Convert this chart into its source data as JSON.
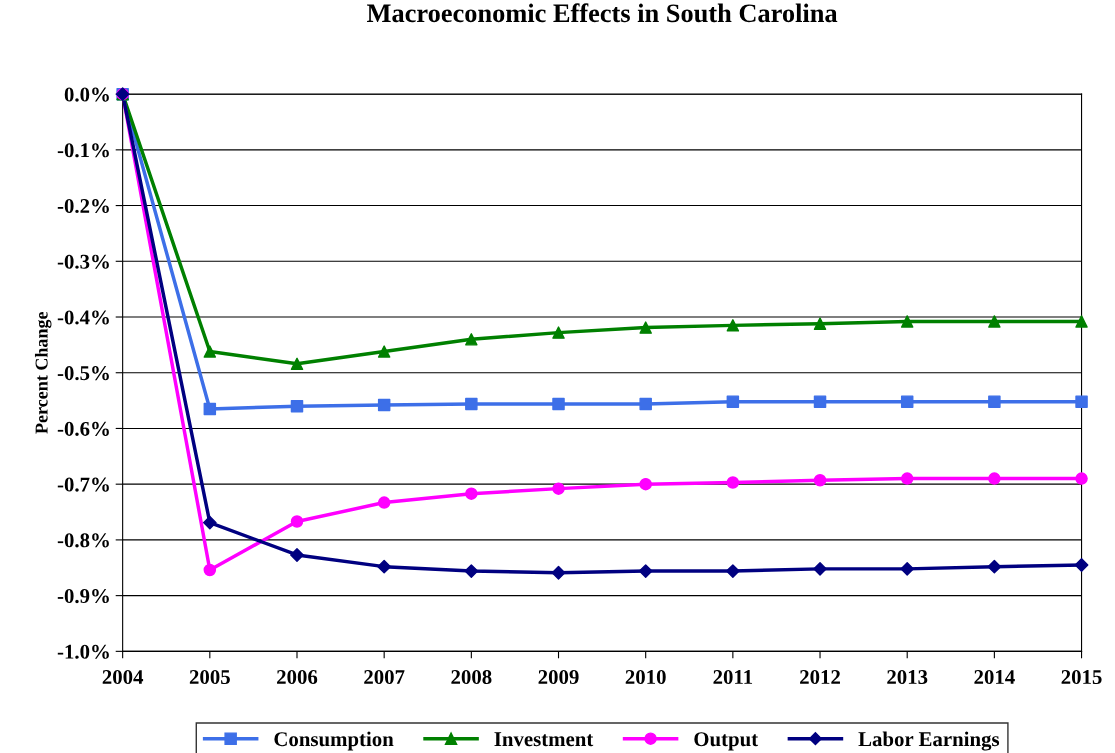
{
  "chart_data": {
    "type": "line",
    "title": "Macroeconomic Effects in South Carolina",
    "ylabel": "Percent Change",
    "x": [
      2004,
      2005,
      2006,
      2007,
      2008,
      2009,
      2010,
      2011,
      2012,
      2013,
      2014,
      2015
    ],
    "series": [
      {
        "name": "Consumption",
        "color": "#3d6fe8",
        "marker": "square",
        "values": [
          0.0,
          -0.565,
          -0.56,
          -0.558,
          -0.556,
          -0.556,
          -0.556,
          -0.552,
          -0.552,
          -0.552,
          -0.552,
          -0.552
        ]
      },
      {
        "name": "Investment",
        "color": "#008000",
        "marker": "triangle",
        "values": [
          0.0,
          -0.462,
          -0.484,
          -0.462,
          -0.44,
          -0.428,
          -0.419,
          -0.415,
          -0.412,
          -0.408,
          -0.408,
          -0.408
        ]
      },
      {
        "name": "Output",
        "color": "#ff00ff",
        "marker": "circle",
        "values": [
          0.0,
          -0.854,
          -0.767,
          -0.733,
          -0.717,
          -0.708,
          -0.7,
          -0.697,
          -0.693,
          -0.69,
          -0.69,
          -0.69
        ]
      },
      {
        "name": "Labor Earnings",
        "color": "#000080",
        "marker": "diamond",
        "values": [
          0.0,
          -0.769,
          -0.827,
          -0.848,
          -0.856,
          -0.859,
          -0.856,
          -0.856,
          -0.852,
          -0.852,
          -0.848,
          -0.845
        ]
      }
    ],
    "xlim": [
      2004,
      2015
    ],
    "xticks": [
      2004,
      2005,
      2006,
      2007,
      2008,
      2009,
      2010,
      2011,
      2012,
      2013,
      2014,
      2015
    ],
    "ylim": [
      -1.0,
      0.0
    ],
    "yticks": [
      {
        "value": 0.0,
        "label": "0.0%"
      },
      {
        "value": -0.1,
        "label": "-0.1%"
      },
      {
        "value": -0.2,
        "label": "-0.2%"
      },
      {
        "value": -0.3,
        "label": "-0.3%"
      },
      {
        "value": -0.4,
        "label": "-0.4%"
      },
      {
        "value": -0.5,
        "label": "-0.5%"
      },
      {
        "value": -0.6,
        "label": "-0.6%"
      },
      {
        "value": -0.7,
        "label": "-0.7%"
      },
      {
        "value": -0.8,
        "label": "-0.8%"
      },
      {
        "value": -0.9,
        "label": "-0.9%"
      },
      {
        "value": -1.0,
        "label": "-1.0%"
      }
    ],
    "grid": "y",
    "legend": "bottom",
    "line_style": "solid"
  }
}
